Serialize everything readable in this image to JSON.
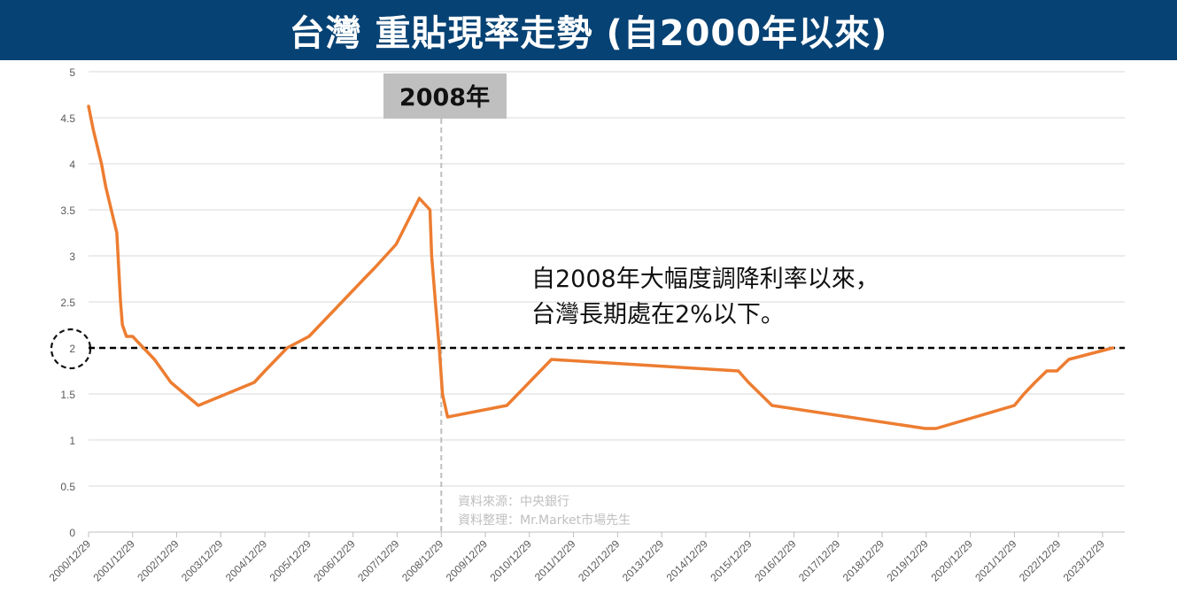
{
  "header": {
    "title": "台灣 重貼現率走勢 (自2000年以來)"
  },
  "chart_data": {
    "type": "line",
    "title": "台灣 重貼現率走勢 (自2000年以來)",
    "xlabel": "",
    "ylabel": "",
    "xlim": [
      "2000-12-29",
      "2024-06-30"
    ],
    "ylim": [
      0,
      5
    ],
    "y_ticks": [
      "0",
      "0.5",
      "1",
      "1.5",
      "2",
      "2.5",
      "3",
      "3.5",
      "4",
      "4.5",
      "5"
    ],
    "x_ticks": [
      "2000/12/29",
      "2001/12/29",
      "2002/12/29",
      "2003/12/29",
      "2004/12/29",
      "2005/12/29",
      "2006/12/29",
      "2007/12/29",
      "2008/12/29",
      "2009/12/29",
      "2010/12/29",
      "2011/12/29",
      "2012/12/29",
      "2013/12/29",
      "2014/12/29",
      "2015/12/29",
      "2016/12/29",
      "2017/12/29",
      "2018/12/29",
      "2019/12/29",
      "2020/12/29",
      "2021/12/29",
      "2022/12/29",
      "2023/12/29"
    ],
    "grid": true,
    "legend": "none",
    "series": [
      {
        "color": "#ED7D31",
        "x": [
          "2000-12-29",
          "2001-02-05",
          "2001-04-15",
          "2001-05-20",
          "2001-08-20",
          "2001-09-20",
          "2001-10-05",
          "2001-11-08",
          "2001-12-29",
          "2002-06-28",
          "2002-11-11",
          "2003-06-27",
          "2004-10-01",
          "2004-12-29",
          "2005-07-01",
          "2005-12-29",
          "2006-06-30",
          "2007-03-30",
          "2007-06-30",
          "2007-12-21",
          "2008-06-30",
          "2008-09-26",
          "2008-10-10",
          "2008-11-10",
          "2008-12-12",
          "2009-01-08",
          "2009-02-19",
          "2010-06-25",
          "2011-06-30",
          "2015-09-25",
          "2015-12-18",
          "2016-03-25",
          "2016-06-30",
          "2019-12-20",
          "2020-03-20",
          "2021-12-29",
          "2022-03-18",
          "2022-06-17",
          "2022-09-23",
          "2022-12-16",
          "2023-03-24",
          "2024-03-22"
        ],
        "values": [
          4.625,
          4.375,
          4.0,
          3.75,
          3.25,
          2.5,
          2.25,
          2.125,
          2.125,
          1.875,
          1.625,
          1.375,
          1.625,
          1.75,
          2.0,
          2.125,
          2.375,
          2.75,
          2.875,
          3.125,
          3.625,
          3.5,
          3.0,
          2.5,
          2.0,
          1.5,
          1.25,
          1.375,
          1.875,
          1.75,
          1.625,
          1.5,
          1.375,
          1.125,
          1.125,
          1.375,
          1.5,
          1.625,
          1.75,
          1.75,
          1.875,
          2.0
        ]
      }
    ],
    "reference_lines": [
      {
        "axis": "y",
        "value": 2,
        "style": "dashed",
        "color": "#000000"
      },
      {
        "axis": "x",
        "value": "2008-12-29",
        "style": "dashed",
        "color": "#BFBFBF",
        "label": "2008年"
      }
    ],
    "annotations": {
      "line1": "自2008年大幅度調降利率以來，",
      "line2": "台灣長期處在2%以下。",
      "source1": "資料來源：中央銀行",
      "source2": "資料整理：Mr.Market市場先生"
    }
  }
}
